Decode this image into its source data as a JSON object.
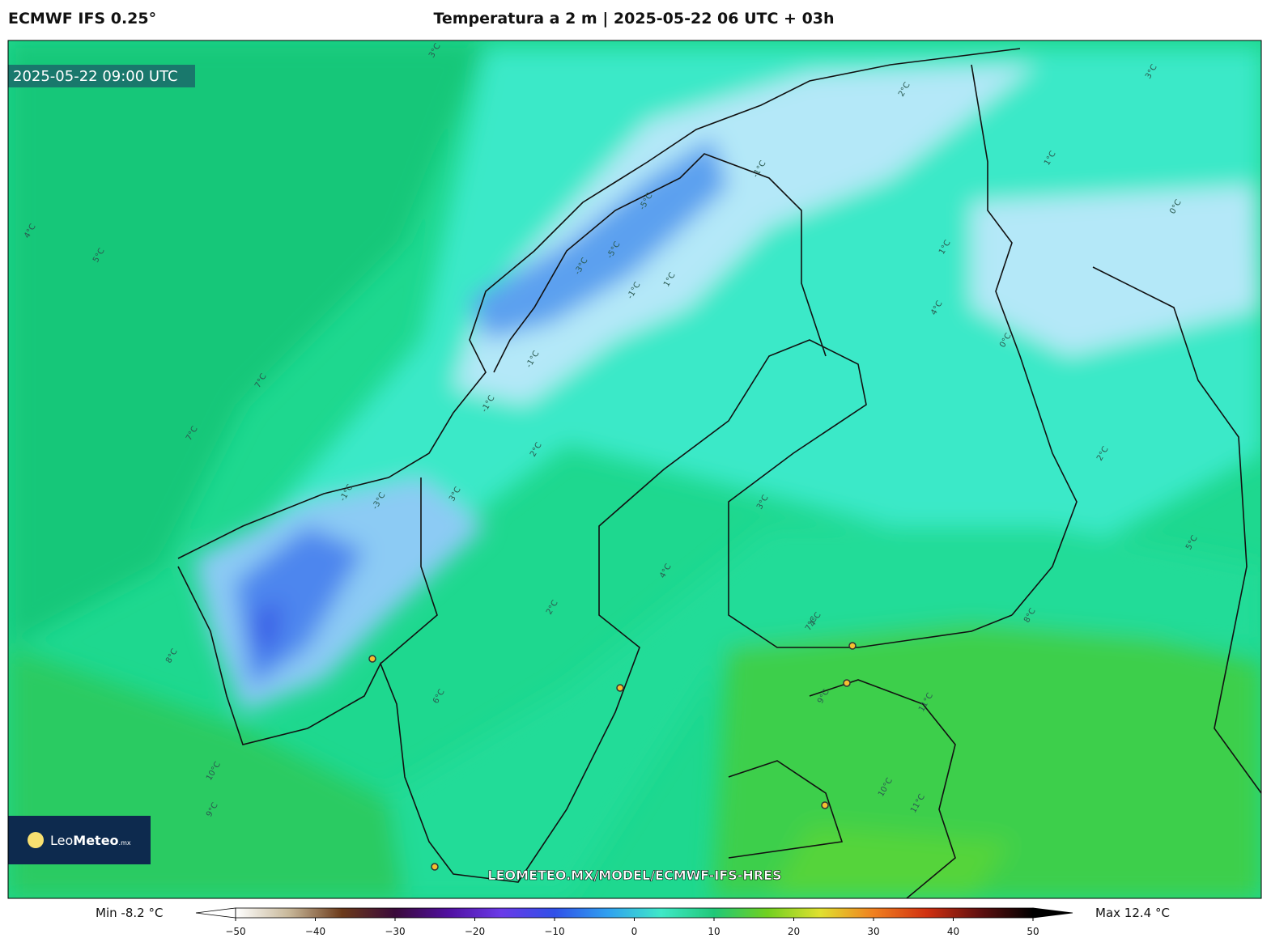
{
  "header": {
    "model": "ECMWF IFS 0.25°",
    "title": "Temperatura a 2 m | 2025-05-22 06 UTC + 03h"
  },
  "map": {
    "valid_time": "2025-05-22 09:00 UTC",
    "watermark": "LEOMETEO.MX/MODEL/ECMWF-IFS-HRES",
    "logo": {
      "name": "Leo",
      "name_bold": "Meteo",
      "suffix": ".mx"
    },
    "contour_labels": [
      "3°C",
      "3°C",
      "4°C",
      "5°C",
      "7°C",
      "7°C",
      "8°C",
      "10°C",
      "9°C",
      "-1°C",
      "-3°C",
      "-5°C",
      "-5°C",
      "-3°C",
      "-1°C",
      "-1°C",
      "1°C",
      "2°C",
      "3°C",
      "4°C",
      "4°C",
      "2°C",
      "1°C",
      "0°C",
      "-1°C",
      "1°C",
      "2°C",
      "3°C",
      "5°C",
      "6°C",
      "7°C",
      "8°C",
      "9°C",
      "10°C",
      "11°C",
      "11°C",
      "2°C",
      "-1°C",
      "0°C",
      "4°C"
    ]
  },
  "colorbar": {
    "min": {
      "label": "Min",
      "value": -8.2,
      "unit": "°C"
    },
    "max": {
      "label": "Max",
      "value": 12.4,
      "unit": "°C"
    },
    "lim": [
      -50,
      50
    ],
    "ticks": [
      {
        "value": -50,
        "label": "−50"
      },
      {
        "value": -40,
        "label": "−40"
      },
      {
        "value": -30,
        "label": "−30"
      },
      {
        "value": -20,
        "label": "−20"
      },
      {
        "value": -10,
        "label": "−10"
      },
      0,
      10,
      20,
      30,
      40,
      50
    ],
    "colors": [
      "#ffffff",
      "#c8b89a",
      "#6b3a1a",
      "#3a0a3a",
      "#5010a0",
      "#6a3ae8",
      "#3050e8",
      "#30a0f0",
      "#40e8c8",
      "#20c878",
      "#70d020",
      "#e0e030",
      "#f08020",
      "#d03010",
      "#601010",
      "#000000"
    ]
  }
}
